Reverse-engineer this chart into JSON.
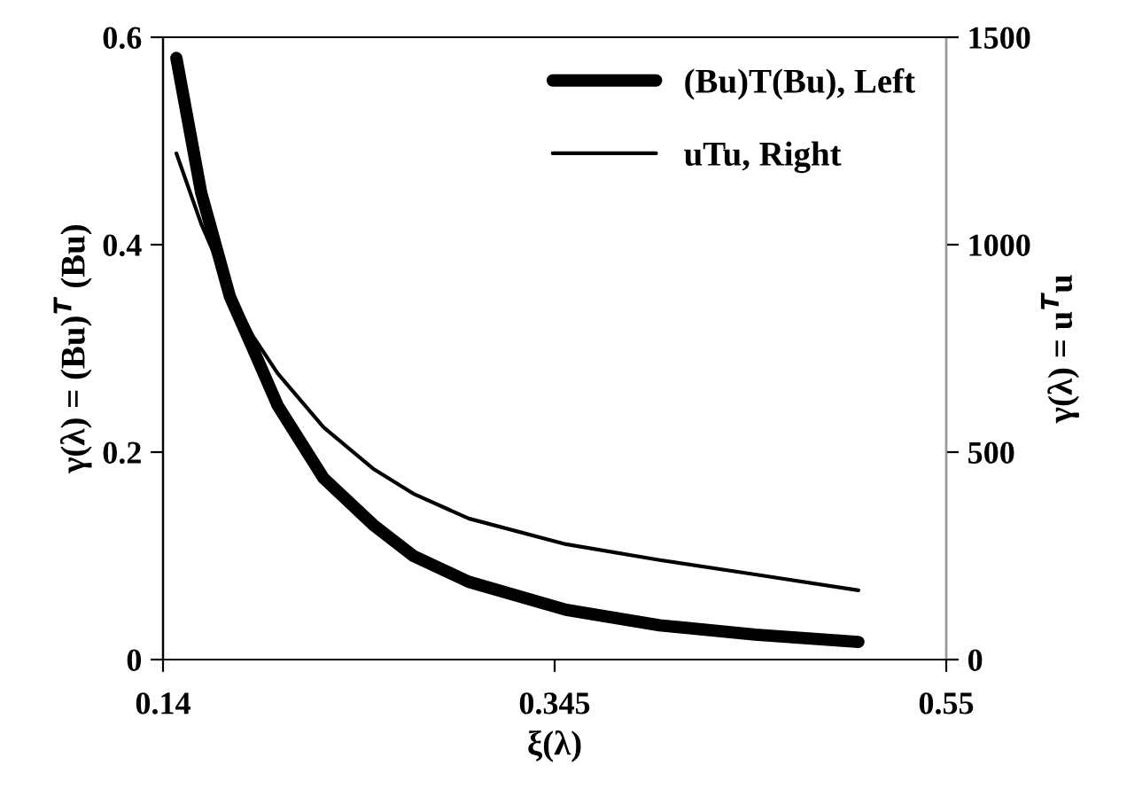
{
  "chart_data": {
    "type": "line",
    "xlabel": "ξ(λ)",
    "ylabel": "γ(λ) = (Bu)$^{T}$ (Bu)",
    "y2label": "γ(λ) = u$^{T}$u",
    "x": [
      0.147,
      0.16,
      0.175,
      0.187,
      0.2,
      0.224,
      0.25,
      0.271,
      0.3,
      0.351,
      0.4,
      0.45,
      0.504
    ],
    "series": [
      {
        "name": "(Bu)T(Bu), Left",
        "color": "#000000",
        "values": [
          0.58,
          0.45,
          0.35,
          0.3,
          0.245,
          0.175,
          0.13,
          0.1,
          0.075,
          0.048,
          0.033,
          0.024,
          0.017
        ]
      },
      {
        "name": "uTu, Right",
        "color": "#000000",
        "axis": "y2",
        "values": [
          1220,
          1050,
          890,
          780,
          690,
          560,
          460,
          400,
          340,
          278,
          240,
          205,
          167
        ]
      }
    ],
    "xlim": [
      0.14,
      0.55
    ],
    "xticks": [
      0.14,
      0.345,
      0.55
    ],
    "ylim": [
      0,
      0.6
    ],
    "yticks": [
      0,
      0.2,
      0.4,
      0.6
    ],
    "y2lim": [
      0,
      1500
    ],
    "y2ticks": [
      0,
      500,
      1000,
      1500
    ],
    "grid": false,
    "legend": "top right",
    "marker": "none",
    "line_style": "solid"
  }
}
